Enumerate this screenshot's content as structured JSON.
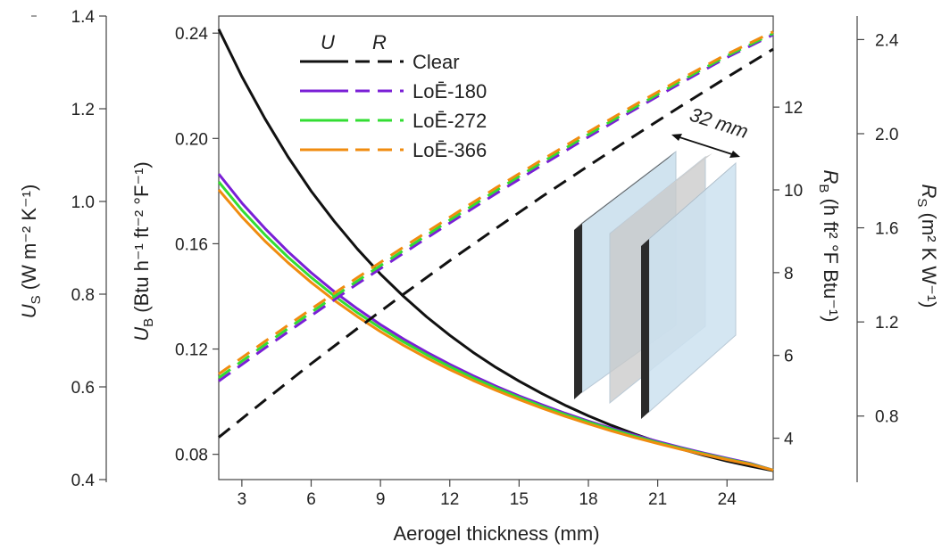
{
  "chart_data": {
    "type": "line",
    "xlabel": "Aerogel thickness (mm)",
    "xlim": [
      2,
      26
    ],
    "xticks": [
      3,
      6,
      9,
      12,
      15,
      18,
      21,
      24
    ],
    "axes": {
      "us": {
        "label_main": "U",
        "label_sub": "S",
        "label_units": " (W m⁻² K⁻¹)",
        "lim": [
          0.4,
          1.4
        ],
        "ticks": [
          "0.4",
          "0.6",
          "0.8",
          "1.0",
          "1.2",
          "1.4"
        ]
      },
      "ub": {
        "label_main": "U",
        "label_sub": "B",
        "label_units": " (Btu h⁻¹ ft⁻² °F⁻¹)",
        "lim": [
          0.0704,
          0.2465
        ],
        "ticks": [
          "0.08",
          "0.12",
          "0.16",
          "0.20",
          "0.24"
        ]
      },
      "rb": {
        "label_main": "R",
        "label_sub": "B",
        "label_units": " (h ft² °F Btu⁻¹)",
        "lim": [
          3.0,
          14.2
        ],
        "ticks": [
          "4",
          "6",
          "8",
          "10",
          "12"
        ]
      },
      "rs": {
        "label_main": "R",
        "label_sub": "S",
        "label_units": " (m² K W⁻¹)",
        "lim": [
          0.53,
          2.5
        ],
        "ticks": [
          "0.8",
          "1.2",
          "1.6",
          "2.0",
          "2.4"
        ]
      }
    },
    "legend": {
      "header_u": "U",
      "header_r": "R",
      "entries": [
        "Clear",
        "LoĒ-180",
        "LoĒ-272",
        "LoĒ-366"
      ]
    },
    "inset_label": "32 mm",
    "series": [
      {
        "name": "Clear",
        "kind": "U",
        "color": "#111111",
        "x": [
          2,
          3,
          4,
          5,
          6,
          7,
          8,
          9,
          10,
          11,
          12,
          13,
          14,
          15,
          16,
          17,
          18,
          19,
          20,
          21,
          22,
          23,
          24,
          25,
          26
        ],
        "y": [
          0.2415,
          0.2235,
          0.2075,
          0.193,
          0.18,
          0.1685,
          0.158,
          0.1485,
          0.14,
          0.1322,
          0.1252,
          0.1188,
          0.113,
          0.1078,
          0.103,
          0.0986,
          0.0946,
          0.091,
          0.0877,
          0.0847,
          0.082,
          0.0796,
          0.0774,
          0.0755,
          0.0738
        ]
      },
      {
        "name": "LoĒ-180",
        "kind": "U",
        "color": "#7a1fd6",
        "x": [
          2,
          3,
          4,
          5,
          6,
          7,
          8,
          9,
          10,
          11,
          12,
          13,
          14,
          15,
          16,
          17,
          18,
          19,
          20,
          21,
          22,
          23,
          24,
          25,
          26
        ],
        "y": [
          0.1865,
          0.1755,
          0.1658,
          0.157,
          0.149,
          0.1418,
          0.1353,
          0.1293,
          0.1238,
          0.1188,
          0.1142,
          0.1099,
          0.1059,
          0.1022,
          0.0988,
          0.0956,
          0.0926,
          0.0899,
          0.0873,
          0.0849,
          0.0826,
          0.0805,
          0.0785,
          0.0766,
          0.074
        ]
      },
      {
        "name": "LoĒ-272",
        "kind": "U",
        "color": "#33dd33",
        "x": [
          2,
          3,
          4,
          5,
          6,
          7,
          8,
          9,
          10,
          11,
          12,
          13,
          14,
          15,
          16,
          17,
          18,
          19,
          20,
          21,
          22,
          23,
          24,
          25,
          26
        ],
        "y": [
          0.1835,
          0.1728,
          0.1634,
          0.1549,
          0.1472,
          0.1402,
          0.1338,
          0.128,
          0.1227,
          0.1178,
          0.1133,
          0.1091,
          0.1052,
          0.1016,
          0.0982,
          0.0951,
          0.0922,
          0.0895,
          0.0869,
          0.0845,
          0.0823,
          0.0802,
          0.0782,
          0.0764,
          0.074
        ]
      },
      {
        "name": "LoĒ-366",
        "kind": "U",
        "color": "#f08c10",
        "x": [
          2,
          3,
          4,
          5,
          6,
          7,
          8,
          9,
          10,
          11,
          12,
          13,
          14,
          15,
          16,
          17,
          18,
          19,
          20,
          21,
          22,
          23,
          24,
          25,
          26
        ],
        "y": [
          0.1805,
          0.1702,
          0.161,
          0.1528,
          0.1453,
          0.1385,
          0.1323,
          0.1266,
          0.1214,
          0.1166,
          0.1122,
          0.1081,
          0.1043,
          0.1008,
          0.0975,
          0.0944,
          0.0916,
          0.0889,
          0.0864,
          0.0841,
          0.0819,
          0.0799,
          0.078,
          0.0762,
          0.074
        ]
      },
      {
        "name": "Clear",
        "kind": "R",
        "color": "#111111",
        "x": [
          2,
          4,
          6,
          8,
          10,
          12,
          14,
          16,
          18,
          20,
          22,
          24,
          26
        ],
        "y": [
          4.02,
          4.92,
          5.8,
          6.65,
          7.48,
          8.29,
          9.07,
          9.84,
          10.58,
          11.31,
          12.02,
          12.72,
          13.4
        ]
      },
      {
        "name": "LoĒ-180",
        "kind": "R",
        "color": "#7a1fd6",
        "x": [
          2,
          4,
          6,
          8,
          10,
          12,
          14,
          16,
          18,
          20,
          22,
          24,
          26
        ],
        "y": [
          5.38,
          6.18,
          6.96,
          7.73,
          8.47,
          9.2,
          9.91,
          10.6,
          11.28,
          11.94,
          12.58,
          13.2,
          13.75
        ]
      },
      {
        "name": "LoĒ-272",
        "kind": "R",
        "color": "#33dd33",
        "x": [
          2,
          4,
          6,
          8,
          10,
          12,
          14,
          16,
          18,
          20,
          22,
          24,
          26
        ],
        "y": [
          5.46,
          6.26,
          7.04,
          7.8,
          8.54,
          9.27,
          9.98,
          10.67,
          11.34,
          11.99,
          12.63,
          13.24,
          13.78
        ]
      },
      {
        "name": "LoĒ-366",
        "kind": "R",
        "color": "#f08c10",
        "x": [
          2,
          4,
          6,
          8,
          10,
          12,
          14,
          16,
          18,
          20,
          22,
          24,
          26
        ],
        "y": [
          5.55,
          6.34,
          7.12,
          7.88,
          8.62,
          9.34,
          10.05,
          10.73,
          11.4,
          12.05,
          12.68,
          13.28,
          13.82
        ]
      }
    ]
  }
}
